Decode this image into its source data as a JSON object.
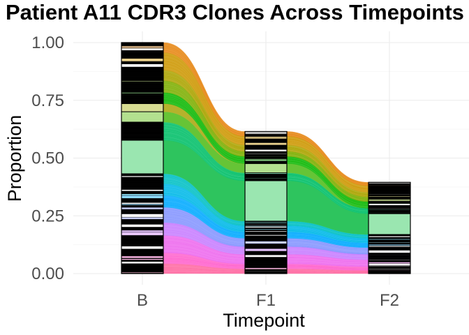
{
  "chart_data": {
    "type": "alluvial",
    "title": "Patient A11 CDR3 Clones Across Timepoints",
    "xlabel": "Timepoint",
    "ylabel": "Proportion",
    "categories": [
      "B",
      "F1",
      "F2"
    ],
    "ylim": [
      0,
      1
    ],
    "yticks": [
      "0.00",
      "0.25",
      "0.50",
      "0.75",
      "1.00"
    ],
    "grid": true,
    "legend": "none",
    "totals": [
      1.0,
      0.615,
      0.395
    ],
    "highlight_clones": [
      {
        "values": [
          0.145,
          0.175,
          0.09
        ],
        "color": "#9ae6b0",
        "flow_color": "#2ec45e"
      },
      {
        "values": [
          0.045,
          0.04,
          0.0
        ],
        "color": "#b3e08f",
        "flow_color": "#66c436"
      },
      {
        "values": [
          0.035,
          0.0,
          0.0
        ],
        "color": "#d7dc92",
        "flow_color": "#b5b22c"
      }
    ],
    "flow_palette": [
      "#f8766d",
      "#e68613",
      "#cd9600",
      "#aba300",
      "#7cae00",
      "#0cb702",
      "#00be67",
      "#00c19a",
      "#00bfc4",
      "#00b8e7",
      "#00a9ff",
      "#8494ff",
      "#c77cff",
      "#ed68ed",
      "#ff61cc",
      "#ff68a1"
    ],
    "bar_colors": [
      "#000000",
      "#ffffff"
    ]
  }
}
